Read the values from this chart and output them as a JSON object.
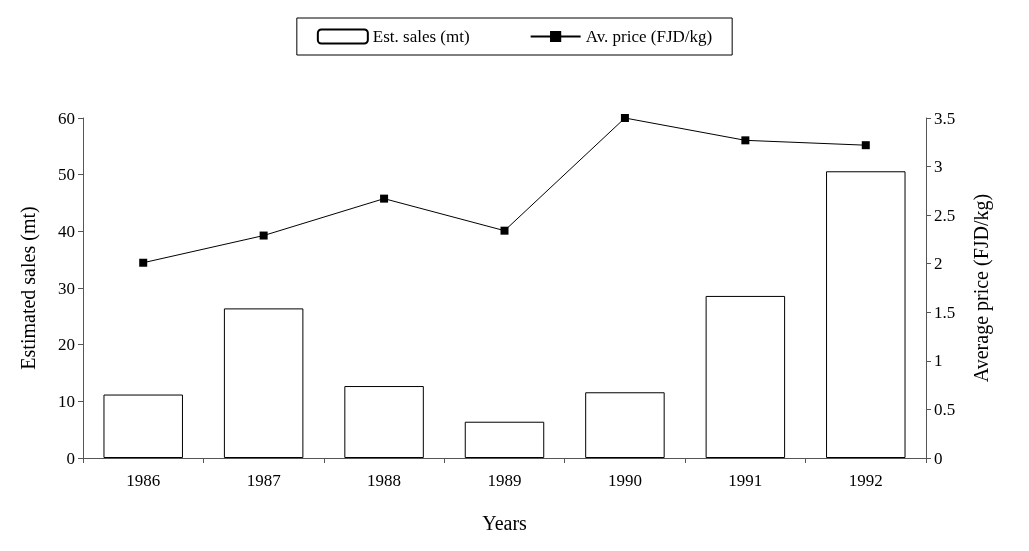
{
  "chart_data": {
    "type": "bar",
    "categories": [
      "1986",
      "1987",
      "1988",
      "1989",
      "1990",
      "1991",
      "1992"
    ],
    "xlabel": "Years",
    "ylabel": "Estimated sales (mt)",
    "y2label": "Average price (FJD/kg)",
    "series": [
      {
        "name": "Est. sales (mt)",
        "color": "#ffffff",
        "values": [
          11.2,
          26.4,
          12.7,
          6.4,
          11.6,
          28.6,
          50.6
        ]
      },
      {
        "name": "Av. price (FJD/kg)",
        "type": "line",
        "axis": "y2",
        "color": "#000000",
        "values": [
          2.01,
          2.29,
          2.67,
          2.34,
          3.5,
          3.27,
          3.22
        ]
      }
    ],
    "ylim": [
      0,
      60
    ],
    "yticks": [
      0,
      10,
      20,
      30,
      40,
      50,
      60
    ],
    "y2lim": [
      0,
      3.5
    ],
    "y2ticks": [
      0,
      0.5,
      1,
      1.5,
      2,
      2.5,
      3,
      3.5
    ],
    "legend": "top",
    "marker": "square",
    "grid": false
  }
}
